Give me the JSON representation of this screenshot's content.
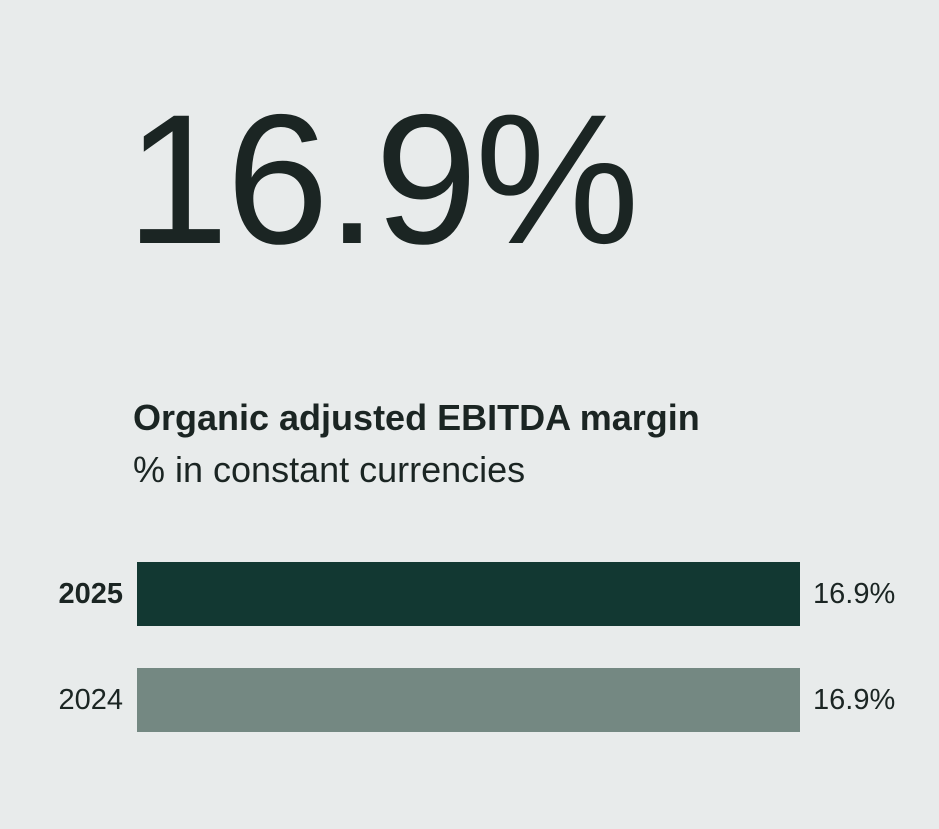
{
  "stat": {
    "value": "16.9%"
  },
  "subtitle": {
    "line1": "Organic adjusted EBITDA margin",
    "line2": "% in constant currencies"
  },
  "colors": {
    "background": "#e8ebeb",
    "text": "#1b2523",
    "bar_current": "#123832",
    "bar_prior": "#748882"
  },
  "chart_data": {
    "type": "bar",
    "orientation": "horizontal",
    "title": "Organic adjusted EBITDA margin",
    "subtitle": "% in constant currencies",
    "categories": [
      "2025",
      "2024"
    ],
    "values": [
      16.9,
      16.9
    ],
    "value_labels": [
      "16.9%",
      "16.9%"
    ],
    "bar_colors": [
      "#123832",
      "#748882"
    ],
    "xlim": [
      0,
      16.9
    ],
    "grid": false,
    "legend": false,
    "highlight_category": "2025"
  }
}
